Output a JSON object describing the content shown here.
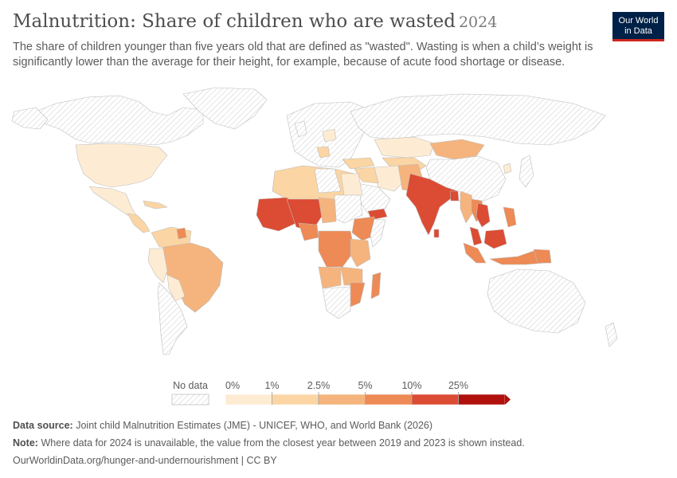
{
  "header": {
    "title": "Malnutrition: Share of children who are wasted",
    "year": "2024",
    "subtitle": "The share of children younger than five years old that are defined as \"wasted\". Wasting is when a child’s weight is significantly lower than the average for their height, for example, because of acute food shortage or disease."
  },
  "logo": {
    "line1": "Our World",
    "line2": "in Data"
  },
  "legend": {
    "no_data_label": "No data",
    "ticks": [
      "0%",
      "1%",
      "2.5%",
      "5%",
      "10%",
      "25%"
    ],
    "colors": [
      "#fdecd3",
      "#fbd5a3",
      "#f5b47d",
      "#ee8a55",
      "#dc4b33",
      "#b0110c"
    ]
  },
  "footer": {
    "source_label": "Data source:",
    "source_text": "Joint child Malnutrition Estimates (JME) - UNICEF, WHO, and World Bank (2026)",
    "note_label": "Note:",
    "note_text": "Where data for 2024 is unavailable, the value from the closest year between 2019 and 2023 is shown instead.",
    "credit": "OurWorldinData.org/hunger-and-undernourishment | CC BY"
  },
  "colors": {
    "nodata_stroke": "#c8c8c8",
    "level1": "#fdecd3",
    "level2": "#fbd5a3",
    "level3": "#f5b47d",
    "level4": "#ee8a55",
    "level5": "#dc4b33"
  }
}
